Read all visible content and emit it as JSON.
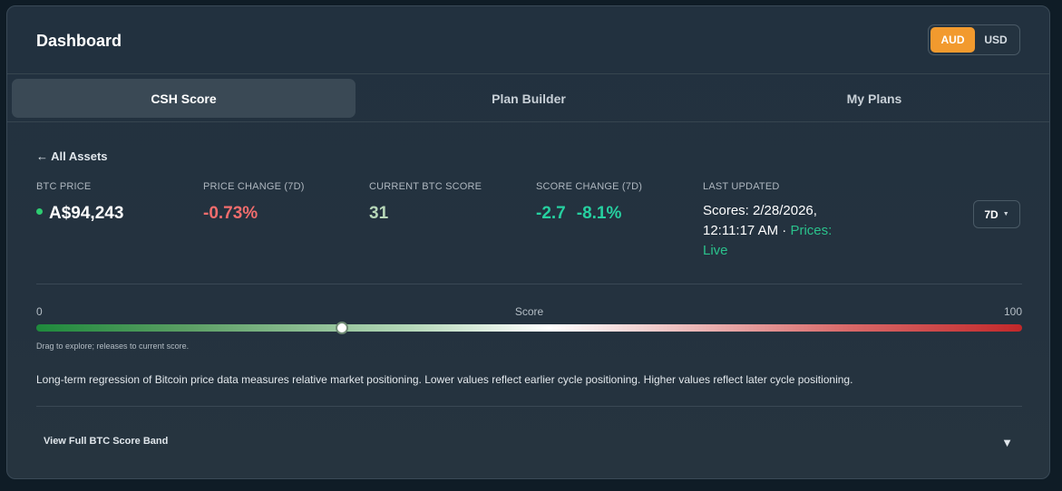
{
  "header": {
    "title": "Dashboard",
    "currency": {
      "options": [
        "AUD",
        "USD"
      ],
      "selected": "AUD"
    }
  },
  "tabs": [
    {
      "label": "CSH Score",
      "active": true
    },
    {
      "label": "Plan Builder",
      "active": false
    },
    {
      "label": "My Plans",
      "active": false
    }
  ],
  "back_link": "← All Assets",
  "stats": {
    "btc_price": {
      "label": "BTC PRICE",
      "value": "A$94,243",
      "indicator_color": "#2ecc71"
    },
    "price_change": {
      "label": "PRICE CHANGE (7D)",
      "value": "-0.73%"
    },
    "current_score": {
      "label": "CURRENT BTC SCORE",
      "value": "31"
    },
    "score_change": {
      "label": "SCORE CHANGE (7D)",
      "abs": "-2.7",
      "pct": "-8.1%"
    },
    "last_updated": {
      "label": "LAST UPDATED",
      "scores": "Scores: 2/28/2026, 12:11:17 AM",
      "separator": "·",
      "prices": "Prices: Live"
    }
  },
  "range_select": {
    "value": "7D",
    "icon": "caret-down"
  },
  "score_slider": {
    "min_label": "0",
    "mid_label": "Score",
    "max_label": "100",
    "value": 31,
    "min": 0,
    "max": 100,
    "hint": "Drag to explore; releases to current score."
  },
  "description": "Long-term regression of Bitcoin price data measures relative market positioning. Lower values reflect earlier cycle positioning. Higher values reflect later cycle positioning.",
  "band_toggle": {
    "label": "View Full BTC Score Band",
    "icon": "triangle-down"
  },
  "colors": {
    "accent": "#f29a2e",
    "positive": "#26d0a0",
    "negative": "#f26d6d",
    "live": "#2bc28c"
  }
}
